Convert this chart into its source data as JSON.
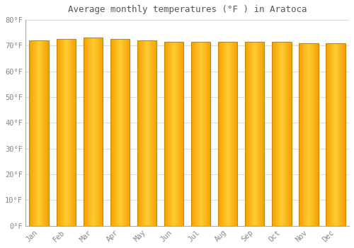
{
  "title": "Average monthly temperatures (°F ) in Aratoca",
  "months": [
    "Jan",
    "Feb",
    "Mar",
    "Apr",
    "May",
    "Jun",
    "Jul",
    "Aug",
    "Sep",
    "Oct",
    "Nov",
    "Dec"
  ],
  "values": [
    72,
    72.5,
    73,
    72.5,
    72,
    71.5,
    71.5,
    71.5,
    71.5,
    71.5,
    71,
    71
  ],
  "bar_color_left": "#F5A800",
  "bar_color_center": "#FFD044",
  "background_color": "#FFFFFF",
  "grid_color": "#DDDDDD",
  "tick_color": "#888888",
  "title_color": "#555555",
  "ylim": [
    0,
    80
  ],
  "yticks": [
    0,
    10,
    20,
    30,
    40,
    50,
    60,
    70,
    80
  ],
  "ytick_labels": [
    "0°F",
    "10°F",
    "20°F",
    "30°F",
    "40°F",
    "50°F",
    "60°F",
    "70°F",
    "80°F"
  ],
  "bar_width": 0.72,
  "n_grad": 60
}
